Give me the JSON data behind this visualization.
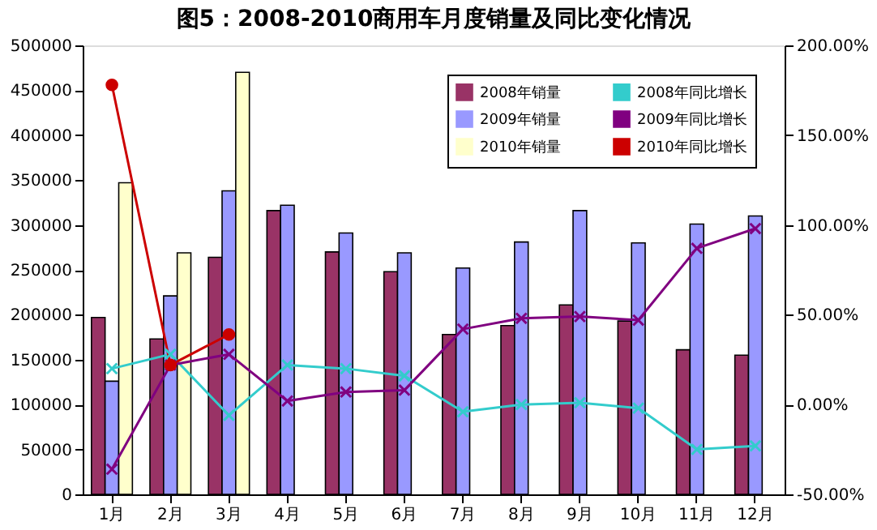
{
  "chart_data": {
    "type": "bar",
    "title": "图5：2008-2010商用车月度销量及同比变化情况",
    "categories": [
      "1月",
      "2月",
      "3月",
      "4月",
      "5月",
      "6月",
      "7月",
      "8月",
      "9月",
      "10月",
      "11月",
      "12月"
    ],
    "series": [
      {
        "name": "2008年销量",
        "color": "#993366",
        "values": [
          197000,
          173000,
          264000,
          316000,
          270000,
          248000,
          178000,
          188000,
          211000,
          193000,
          161000,
          155000
        ]
      },
      {
        "name": "2009年销量",
        "color": "#9999ff",
        "values": [
          126000,
          221000,
          338000,
          322000,
          291000,
          269000,
          252000,
          281000,
          316000,
          280000,
          301000,
          310000
        ]
      },
      {
        "name": "2010年销量",
        "color": "#ffffcc",
        "values": [
          347000,
          269000,
          470000,
          null,
          null,
          null,
          null,
          null,
          null,
          null,
          null,
          null
        ]
      },
      {
        "name": "2008年同比增长",
        "type": "line",
        "axis": "y2",
        "color": "#33cccc",
        "marker": "cross",
        "line_style": "solid",
        "values": [
          20,
          28,
          -6,
          22,
          20,
          16,
          -4,
          0,
          1,
          -2,
          -25,
          -23
        ]
      },
      {
        "name": "2009年同比增长",
        "type": "line",
        "axis": "y2",
        "color": "#800080",
        "marker": "cross",
        "line_style": "solid",
        "values": [
          -36,
          22,
          28,
          2,
          7,
          8,
          42,
          48,
          49,
          47,
          87,
          98
        ]
      },
      {
        "name": "2010年同比增长",
        "type": "line",
        "axis": "y2",
        "color": "#cc0000",
        "marker": "circle",
        "line_style": "solid",
        "values": [
          178,
          22,
          39,
          null,
          null,
          null,
          null,
          null,
          null,
          null,
          null,
          null
        ]
      }
    ],
    "ylim": [
      0,
      500000
    ],
    "yticks": [
      0,
      50000,
      100000,
      150000,
      200000,
      250000,
      300000,
      350000,
      400000,
      450000,
      500000
    ],
    "y2lim": [
      -50,
      200
    ],
    "y2ticks": [
      {
        "value": -50,
        "label": "-50.00%"
      },
      {
        "value": 0,
        "label": "0.00%"
      },
      {
        "value": 50,
        "label": "50.00%"
      },
      {
        "value": 100,
        "label": "100.00%"
      },
      {
        "value": 150,
        "label": "150.00%"
      },
      {
        "value": 200,
        "label": "200.00%"
      }
    ],
    "grid": false,
    "legend": "top right"
  }
}
